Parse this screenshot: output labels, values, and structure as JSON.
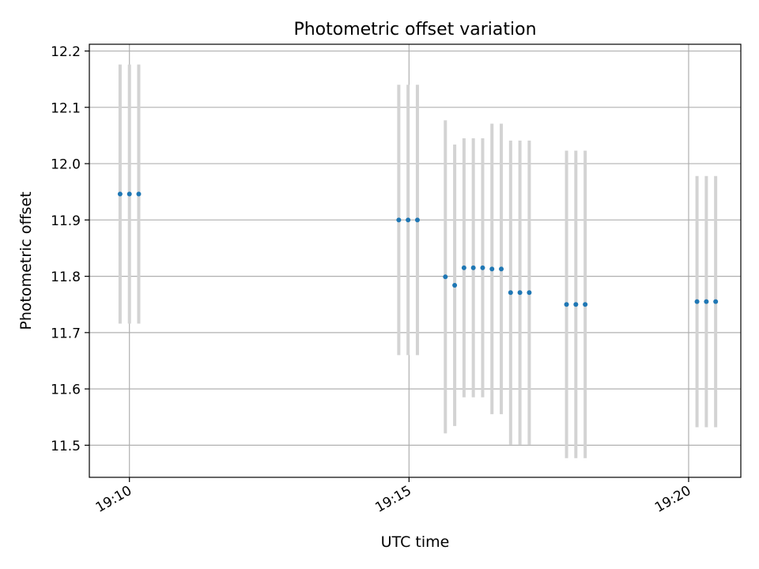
{
  "chart_data": {
    "type": "scatter",
    "title": "Photometric offset variation",
    "xlabel": "UTC time",
    "ylabel": "Photometric offset",
    "x_axis": {
      "kind": "time",
      "unit": "minutes",
      "range": [
        "19:09:17",
        "19:20:56"
      ],
      "ticks": [
        "19:10",
        "19:15",
        "19:20"
      ],
      "tick_rotation": "30 degrees"
    },
    "y_axis": {
      "range": [
        11.443,
        12.212
      ],
      "ticks": [
        "11.5",
        "11.6",
        "11.7",
        "11.8",
        "11.9",
        "12.0",
        "12.1",
        "12.2"
      ]
    },
    "grid": true,
    "series": [
      {
        "marker_color": "#1f77b4",
        "errorbar_color": "#d3d3d3",
        "points": [
          {
            "time": "19:09:50",
            "y": 11.946,
            "err": 0.23
          },
          {
            "time": "19:10:00",
            "y": 11.946,
            "err": 0.23
          },
          {
            "time": "19:10:10",
            "y": 11.946,
            "err": 0.23
          },
          {
            "time": "19:14:49",
            "y": 11.9,
            "err": 0.24
          },
          {
            "time": "19:14:59",
            "y": 11.9,
            "err": 0.24
          },
          {
            "time": "19:15:09",
            "y": 11.9,
            "err": 0.24
          },
          {
            "time": "19:15:39",
            "y": 11.799,
            "err": 0.278
          },
          {
            "time": "19:15:49",
            "y": 11.784,
            "err": 0.25
          },
          {
            "time": "19:15:59",
            "y": 11.815,
            "err": 0.23
          },
          {
            "time": "19:16:09",
            "y": 11.815,
            "err": 0.23
          },
          {
            "time": "19:16:19",
            "y": 11.815,
            "err": 0.23
          },
          {
            "time": "19:16:29",
            "y": 11.813,
            "err": 0.258
          },
          {
            "time": "19:16:39",
            "y": 11.813,
            "err": 0.258
          },
          {
            "time": "19:16:49",
            "y": 11.771,
            "err": 0.27
          },
          {
            "time": "19:16:59",
            "y": 11.771,
            "err": 0.27
          },
          {
            "time": "19:17:09",
            "y": 11.771,
            "err": 0.27
          },
          {
            "time": "19:17:49",
            "y": 11.75,
            "err": 0.273
          },
          {
            "time": "19:17:59",
            "y": 11.75,
            "err": 0.273
          },
          {
            "time": "19:18:09",
            "y": 11.75,
            "err": 0.273
          },
          {
            "time": "19:20:09",
            "y": 11.755,
            "err": 0.223
          },
          {
            "time": "19:20:19",
            "y": 11.755,
            "err": 0.223
          },
          {
            "time": "19:20:29",
            "y": 11.755,
            "err": 0.223
          }
        ]
      }
    ]
  }
}
